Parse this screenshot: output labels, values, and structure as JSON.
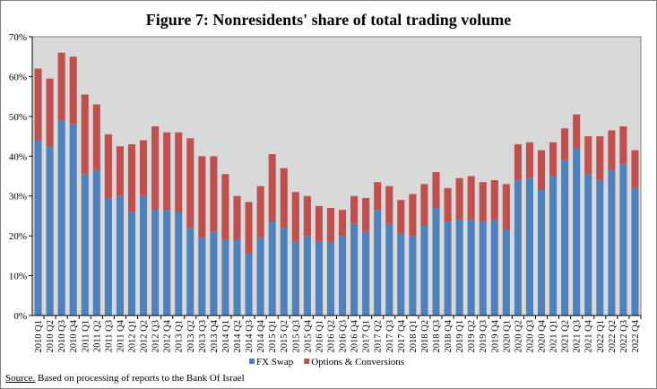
{
  "chart_data": {
    "type": "bar",
    "stacked": true,
    "title": "Figure 7: Nonresidents' share of total trading volume",
    "xlabel": "",
    "ylabel": "",
    "ylim": [
      0,
      70
    ],
    "y_ticks": [
      "0%",
      "10%",
      "20%",
      "30%",
      "40%",
      "50%",
      "60%",
      "70%"
    ],
    "grid": false,
    "plot_background": "#d9d9d9",
    "legend_position": "bottom",
    "categories": [
      "2010 Q1",
      "2010 Q2",
      "2010 Q3",
      "2010 Q4",
      "2011 Q1",
      "2011 Q2",
      "2011 Q3",
      "2011 Q4",
      "2012 Q1",
      "2012 Q2",
      "2012 Q3",
      "2012 Q4",
      "2013 Q1",
      "2013 Q2",
      "2013 Q3",
      "2013 Q4",
      "2014 Q1",
      "2014 Q2",
      "2014 Q3",
      "2014 Q4",
      "2015 Q1",
      "2015 Q2",
      "2015 Q3",
      "2015 Q4",
      "2016 Q1",
      "2016 Q2",
      "2016 Q3",
      "2016 Q4",
      "2017 Q1",
      "2017 Q2",
      "2017 Q3",
      "2017 Q4",
      "2018 Q1",
      "2018 Q2",
      "2018 Q3",
      "2018 Q4",
      "2019 Q1",
      "2019 Q2",
      "2019 Q3",
      "2019 Q4",
      "2020 Q1",
      "2020 Q2",
      "2020 Q3",
      "2020 Q4",
      "2021 Q1",
      "2021 Q2",
      "2021 Q3",
      "2021 Q4",
      "2022 Q1",
      "2022 Q2",
      "2022 Q3",
      "2022 Q4"
    ],
    "series": [
      {
        "name": "FX Swap",
        "color": "#4f81bd",
        "values": [
          44.0,
          42.5,
          49.0,
          48.0,
          35.5,
          36.5,
          29.5,
          30.0,
          26.0,
          30.0,
          26.5,
          26.5,
          26.0,
          22.0,
          19.5,
          21.0,
          19.0,
          19.0,
          15.5,
          19.5,
          23.5,
          22.0,
          18.5,
          20.0,
          18.5,
          18.5,
          20.0,
          23.0,
          21.0,
          26.5,
          23.0,
          20.5,
          20.0,
          22.5,
          27.0,
          23.5,
          24.0,
          24.0,
          23.5,
          24.0,
          21.5,
          34.0,
          34.5,
          31.5,
          35.0,
          39.0,
          42.0,
          35.5,
          34.0,
          36.5,
          38.0,
          32.0
        ]
      },
      {
        "name": "Options & Conversions",
        "color": "#c0504d",
        "values": [
          18.0,
          17.0,
          17.0,
          17.0,
          20.0,
          16.5,
          16.0,
          12.5,
          17.0,
          14.0,
          21.0,
          19.5,
          20.0,
          22.5,
          20.5,
          19.0,
          16.5,
          11.0,
          13.0,
          13.0,
          17.0,
          15.0,
          12.5,
          10.0,
          9.0,
          8.5,
          6.5,
          7.0,
          8.5,
          7.0,
          9.5,
          8.5,
          10.5,
          10.5,
          9.0,
          8.5,
          10.5,
          11.0,
          10.0,
          10.0,
          11.5,
          9.0,
          9.0,
          10.0,
          8.5,
          8.0,
          8.5,
          9.5,
          11.0,
          10.0,
          9.5,
          9.5
        ]
      }
    ]
  },
  "source": {
    "label": "Source.",
    "text": " Based on processing of reports to the Bank Of Israel"
  }
}
